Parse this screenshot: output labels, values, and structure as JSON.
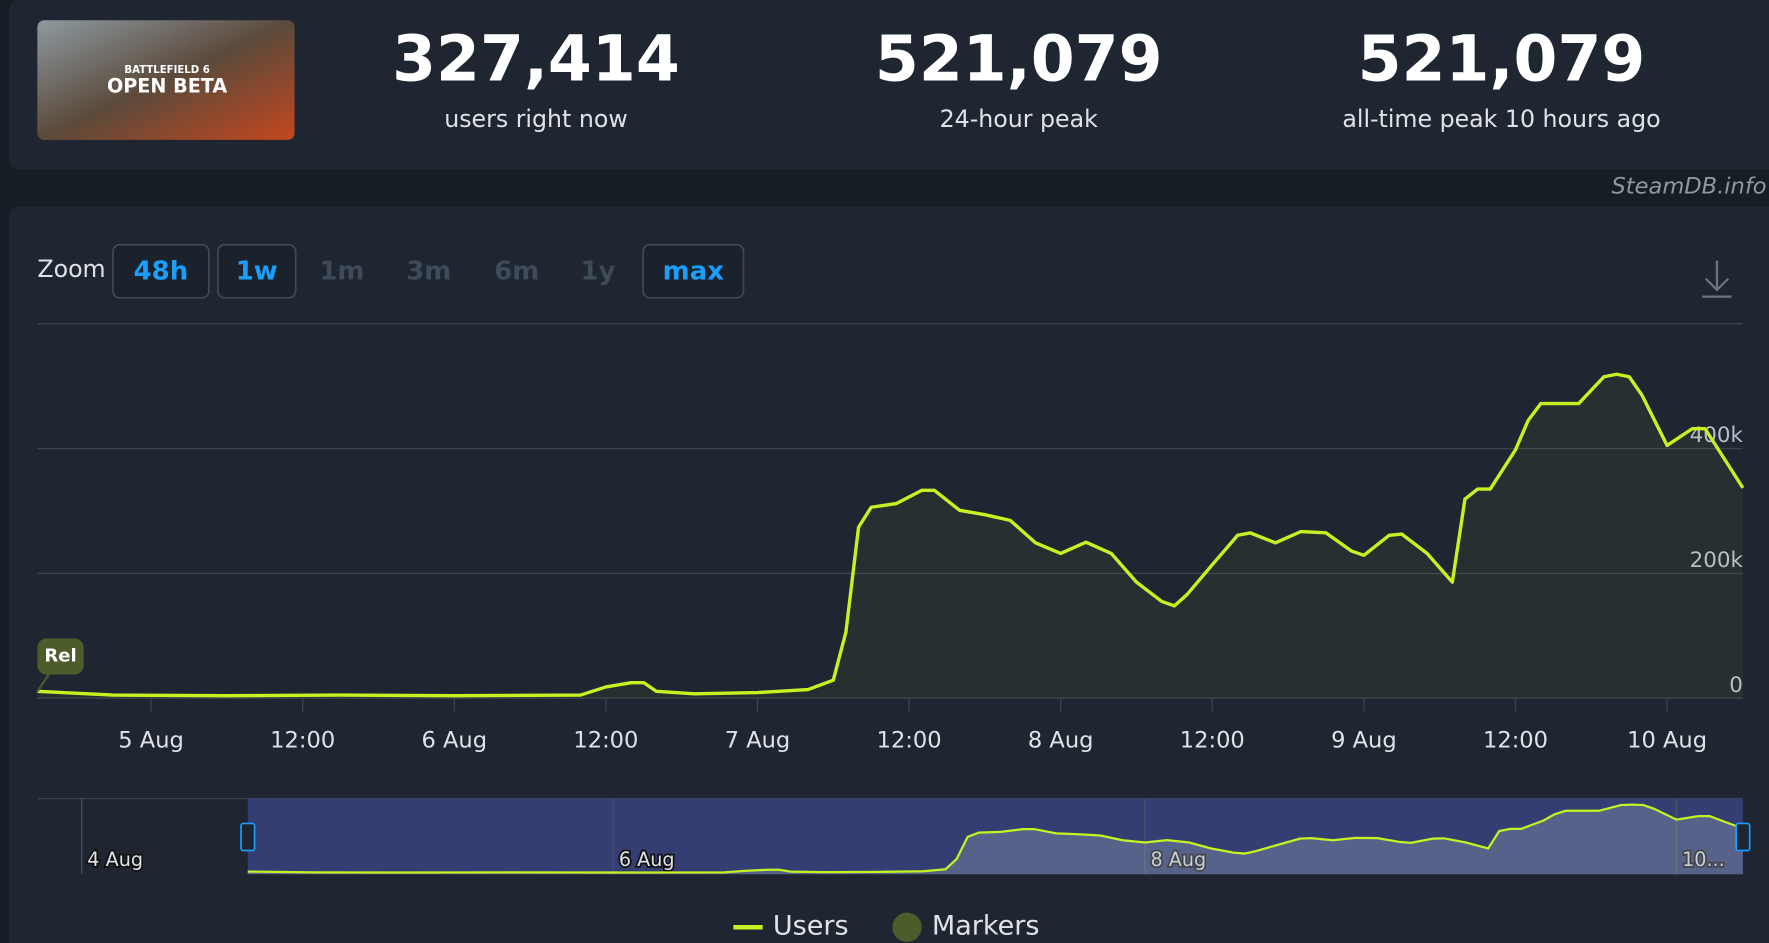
{
  "header": {
    "image_text": [
      "BATTLEFIELD 6",
      "OPEN BETA"
    ],
    "stats": [
      {
        "number": "327,414",
        "label": "users right now"
      },
      {
        "number": "521,079",
        "label": "24-hour peak"
      },
      {
        "number": "521,079",
        "label": "all-time peak 10 hours ago"
      }
    ],
    "watermark": "SteamDB.info"
  },
  "zoom": {
    "label": "Zoom",
    "buttons": [
      {
        "label": "48h",
        "active": true
      },
      {
        "label": "1w",
        "active": true
      },
      {
        "label": "1m",
        "active": false
      },
      {
        "label": "3m",
        "active": false
      },
      {
        "label": "6m",
        "active": false
      },
      {
        "label": "1y",
        "active": false
      },
      {
        "label": "max",
        "active": true
      }
    ]
  },
  "chart_data": {
    "type": "line",
    "x": [
      "4 Aug 15:00",
      "4 Aug 21:00",
      "5 Aug 06:00",
      "5 Aug 15:00",
      "6 Aug 00:00",
      "6 Aug 10:00",
      "6 Aug 12:00",
      "6 Aug 14:00",
      "6 Aug 15:00",
      "6 Aug 16:00",
      "6 Aug 19:00",
      "7 Aug 00:00",
      "7 Aug 04:00",
      "7 Aug 06:00",
      "7 Aug 07:00",
      "7 Aug 08:00",
      "7 Aug 09:00",
      "7 Aug 11:00",
      "7 Aug 13:00",
      "7 Aug 14:00",
      "7 Aug 16:00",
      "7 Aug 18:00",
      "7 Aug 20:00",
      "7 Aug 22:00",
      "8 Aug 00:00",
      "8 Aug 02:00",
      "8 Aug 04:00",
      "8 Aug 06:00",
      "8 Aug 08:00",
      "8 Aug 09:00",
      "8 Aug 10:00",
      "8 Aug 12:00",
      "8 Aug 14:00",
      "8 Aug 15:00",
      "8 Aug 17:00",
      "8 Aug 19:00",
      "8 Aug 21:00",
      "8 Aug 23:00",
      "9 Aug 00:00",
      "9 Aug 02:00",
      "9 Aug 03:00",
      "9 Aug 05:00",
      "9 Aug 07:00",
      "9 Aug 08:00",
      "9 Aug 09:00",
      "9 Aug 10:00",
      "9 Aug 12:00",
      "9 Aug 13:00",
      "9 Aug 14:00",
      "9 Aug 17:00",
      "9 Aug 19:00",
      "9 Aug 20:00",
      "9 Aug 21:00",
      "9 Aug 22:00",
      "10 Aug 00:00",
      "10 Aug 02:00",
      "10 Aug 03:00",
      "10 Aug 06:00"
    ],
    "series": [
      {
        "name": "Users",
        "color": "#c6f221",
        "values": [
          11000,
          5000,
          4000,
          5000,
          4000,
          5000,
          18000,
          25000,
          25000,
          11000,
          7000,
          9000,
          14000,
          29000,
          106000,
          274000,
          306000,
          312000,
          333000,
          333000,
          301000,
          294000,
          285000,
          249000,
          232000,
          250000,
          232000,
          186000,
          155000,
          148000,
          166000,
          214000,
          261000,
          265000,
          249000,
          267000,
          265000,
          236000,
          229000,
          261000,
          263000,
          232000,
          186000,
          319000,
          335000,
          335000,
          398000,
          445000,
          472000,
          472000,
          515000,
          519000,
          515000,
          486000,
          405000,
          432000,
          432000,
          337000
        ]
      }
    ],
    "xlim": [
      "4 Aug 15:00",
      "10 Aug 06:00"
    ],
    "xticks": [
      {
        "value": "5 Aug 00:00",
        "label": "5 Aug"
      },
      {
        "value": "5 Aug 12:00",
        "label": "12:00"
      },
      {
        "value": "6 Aug 00:00",
        "label": "6 Aug"
      },
      {
        "value": "6 Aug 12:00",
        "label": "12:00"
      },
      {
        "value": "7 Aug 00:00",
        "label": "7 Aug"
      },
      {
        "value": "7 Aug 12:00",
        "label": "12:00"
      },
      {
        "value": "8 Aug 00:00",
        "label": "8 Aug"
      },
      {
        "value": "8 Aug 12:00",
        "label": "12:00"
      },
      {
        "value": "9 Aug 00:00",
        "label": "9 Aug"
      },
      {
        "value": "9 Aug 12:00",
        "label": "12:00"
      },
      {
        "value": "10 Aug 00:00",
        "label": "10 Aug"
      }
    ],
    "ylim": [
      0,
      600000
    ],
    "yticks": [
      0,
      {
        "value": 200000,
        "label": "200k"
      },
      {
        "value": 400000,
        "label": "400k"
      }
    ],
    "grid": true,
    "marker": {
      "label": "Rel",
      "x": "4 Aug 15:00"
    },
    "legend": [
      "Users",
      "Markers"
    ],
    "navigator": {
      "xlim": [
        "3 Aug 20:00",
        "10 Aug 06:00"
      ],
      "selection": [
        "4 Aug 15:00",
        "10 Aug 06:00"
      ],
      "labels": [
        {
          "value": "4 Aug 00:00",
          "label": "4 Aug"
        },
        {
          "value": "6 Aug 00:00",
          "label": "6 Aug"
        },
        {
          "value": "8 Aug 00:00",
          "label": "8 Aug"
        },
        {
          "value": "10 Aug 00:00",
          "label": "10..."
        }
      ]
    }
  }
}
